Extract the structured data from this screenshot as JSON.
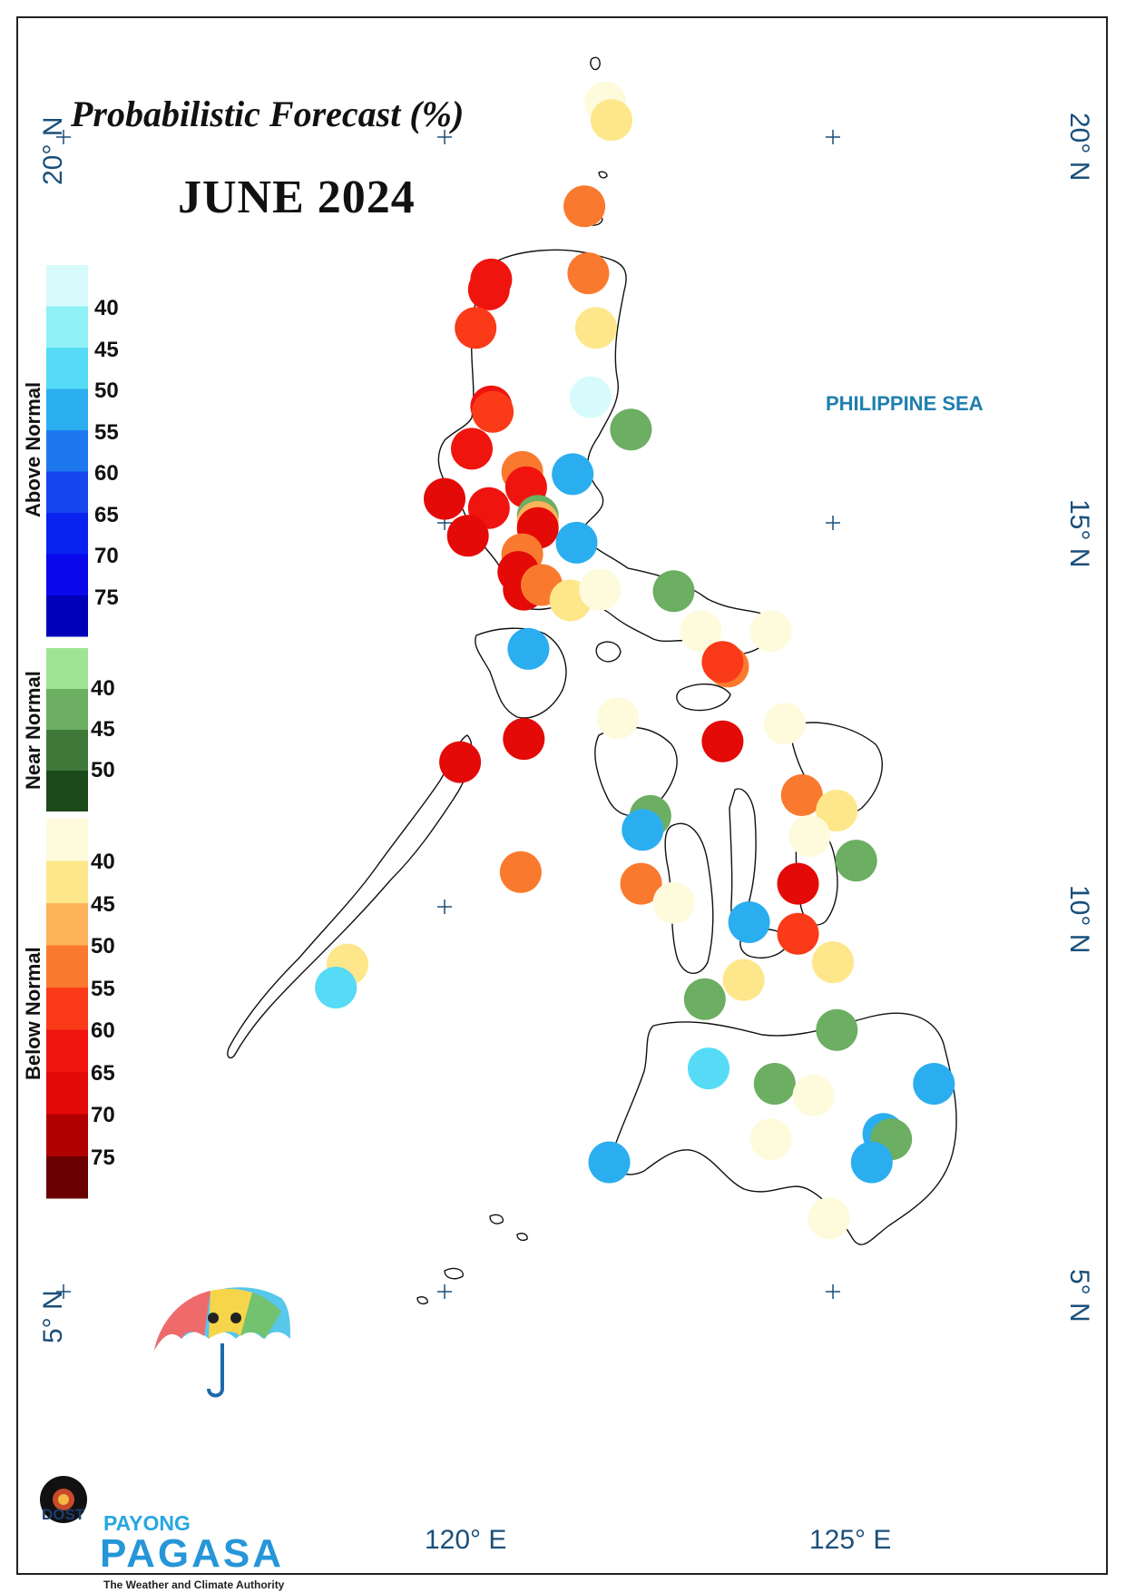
{
  "title": "Probabilistic Forecast (%)",
  "subtitle": "JUNE 2024",
  "sea_label": "PHILIPPINE SEA",
  "axes": {
    "lat_labels": [
      "20° N",
      "15° N",
      "10° N",
      "5° N"
    ],
    "lon_labels": [
      "120° E",
      "125° E"
    ],
    "lat_range": [
      4,
      21.5
    ],
    "lon_range": [
      114.3,
      127.3
    ]
  },
  "legend": {
    "above_normal": {
      "title": "Above Normal",
      "ticks": [
        "40",
        "45",
        "50",
        "55",
        "60",
        "65",
        "70",
        "75"
      ],
      "colors": [
        "#d7fbfc",
        "#8ff1f6",
        "#55dbf6",
        "#2aaef0",
        "#1d78ef",
        "#1447ee",
        "#0a22f0",
        "#0808ea",
        "#0000b8"
      ]
    },
    "near_normal": {
      "title": "Near Normal",
      "ticks": [
        "40",
        "45",
        "50"
      ],
      "colors": [
        "#9fe495",
        "#6cae62",
        "#40783a",
        "#1d4a1a"
      ]
    },
    "below_normal": {
      "title": "Below Normal",
      "ticks": [
        "40",
        "45",
        "50",
        "55",
        "60",
        "65",
        "70",
        "75"
      ],
      "colors": [
        "#fdfbdc",
        "#fde78a",
        "#fdb35a",
        "#f97a2e",
        "#fa3a18",
        "#f0140f",
        "#e30a08",
        "#b10000",
        "#6a0000"
      ]
    }
  },
  "chart_data": {
    "type": "scatter",
    "description_units": "longitude (°E), latitude (°N), category: above/near/below normal, probability level (%)",
    "points": [
      {
        "lon": 122.07,
        "lat": 20.45,
        "cat": "below",
        "level": 35
      },
      {
        "lon": 122.15,
        "lat": 20.22,
        "cat": "below",
        "level": 40
      },
      {
        "lon": 121.8,
        "lat": 19.1,
        "cat": "below",
        "level": 50
      },
      {
        "lon": 121.85,
        "lat": 18.23,
        "cat": "below",
        "level": 50
      },
      {
        "lon": 120.6,
        "lat": 18.15,
        "cat": "below",
        "level": 60
      },
      {
        "lon": 120.57,
        "lat": 18.02,
        "cat": "below",
        "level": 60
      },
      {
        "lon": 120.4,
        "lat": 17.52,
        "cat": "below",
        "level": 55
      },
      {
        "lon": 121.95,
        "lat": 17.52,
        "cat": "below",
        "level": 40
      },
      {
        "lon": 121.88,
        "lat": 16.62,
        "cat": "above",
        "level": 35
      },
      {
        "lon": 120.6,
        "lat": 16.5,
        "cat": "below",
        "level": 60
      },
      {
        "lon": 120.62,
        "lat": 16.43,
        "cat": "below",
        "level": 55
      },
      {
        "lon": 122.4,
        "lat": 16.2,
        "cat": "near",
        "level": 40
      },
      {
        "lon": 120.35,
        "lat": 15.95,
        "cat": "below",
        "level": 60
      },
      {
        "lon": 121.0,
        "lat": 15.65,
        "cat": "below",
        "level": 50
      },
      {
        "lon": 121.65,
        "lat": 15.62,
        "cat": "above",
        "level": 50
      },
      {
        "lon": 121.05,
        "lat": 15.45,
        "cat": "below",
        "level": 60
      },
      {
        "lon": 120.0,
        "lat": 15.3,
        "cat": "below",
        "level": 65
      },
      {
        "lon": 120.57,
        "lat": 15.18,
        "cat": "below",
        "level": 60
      },
      {
        "lon": 121.2,
        "lat": 15.08,
        "cat": "near",
        "level": 40
      },
      {
        "lon": 121.2,
        "lat": 15.0,
        "cat": "below",
        "level": 45
      },
      {
        "lon": 121.2,
        "lat": 14.92,
        "cat": "below",
        "level": 65
      },
      {
        "lon": 120.3,
        "lat": 14.82,
        "cat": "below",
        "level": 65
      },
      {
        "lon": 121.7,
        "lat": 14.73,
        "cat": "above",
        "level": 50
      },
      {
        "lon": 121.0,
        "lat": 14.58,
        "cat": "below",
        "level": 50
      },
      {
        "lon": 120.95,
        "lat": 14.35,
        "cat": "below",
        "level": 65
      },
      {
        "lon": 121.02,
        "lat": 14.12,
        "cat": "below",
        "level": 65
      },
      {
        "lon": 121.25,
        "lat": 14.18,
        "cat": "below",
        "level": 50
      },
      {
        "lon": 121.62,
        "lat": 13.98,
        "cat": "below",
        "level": 40
      },
      {
        "lon": 122.0,
        "lat": 14.12,
        "cat": "below",
        "level": 35
      },
      {
        "lon": 122.95,
        "lat": 14.1,
        "cat": "near",
        "level": 40
      },
      {
        "lon": 123.3,
        "lat": 13.58,
        "cat": "below",
        "level": 35
      },
      {
        "lon": 124.2,
        "lat": 13.58,
        "cat": "below",
        "level": 35
      },
      {
        "lon": 121.08,
        "lat": 13.35,
        "cat": "above",
        "level": 50
      },
      {
        "lon": 123.65,
        "lat": 13.12,
        "cat": "below",
        "level": 50
      },
      {
        "lon": 123.58,
        "lat": 13.18,
        "cat": "below",
        "level": 55
      },
      {
        "lon": 122.23,
        "lat": 12.45,
        "cat": "below",
        "level": 35
      },
      {
        "lon": 124.38,
        "lat": 12.38,
        "cat": "below",
        "level": 35
      },
      {
        "lon": 121.02,
        "lat": 12.18,
        "cat": "below",
        "level": 65
      },
      {
        "lon": 123.58,
        "lat": 12.15,
        "cat": "below",
        "level": 65
      },
      {
        "lon": 120.2,
        "lat": 11.88,
        "cat": "below",
        "level": 65
      },
      {
        "lon": 124.6,
        "lat": 11.45,
        "cat": "below",
        "level": 50
      },
      {
        "lon": 125.05,
        "lat": 11.25,
        "cat": "below",
        "level": 40
      },
      {
        "lon": 122.65,
        "lat": 11.18,
        "cat": "near",
        "level": 40
      },
      {
        "lon": 122.55,
        "lat": 11.0,
        "cat": "above",
        "level": 50
      },
      {
        "lon": 124.7,
        "lat": 10.92,
        "cat": "below",
        "level": 35
      },
      {
        "lon": 125.3,
        "lat": 10.6,
        "cat": "near",
        "level": 40
      },
      {
        "lon": 120.98,
        "lat": 10.45,
        "cat": "below",
        "level": 50
      },
      {
        "lon": 122.53,
        "lat": 10.3,
        "cat": "below",
        "level": 50
      },
      {
        "lon": 124.55,
        "lat": 10.3,
        "cat": "below",
        "level": 65
      },
      {
        "lon": 122.95,
        "lat": 10.05,
        "cat": "below",
        "level": 35
      },
      {
        "lon": 123.92,
        "lat": 9.8,
        "cat": "above",
        "level": 50
      },
      {
        "lon": 124.55,
        "lat": 9.65,
        "cat": "below",
        "level": 55
      },
      {
        "lon": 125.0,
        "lat": 9.28,
        "cat": "below",
        "level": 40
      },
      {
        "lon": 118.75,
        "lat": 9.25,
        "cat": "below",
        "level": 40
      },
      {
        "lon": 123.85,
        "lat": 9.05,
        "cat": "below",
        "level": 40
      },
      {
        "lon": 118.6,
        "lat": 8.95,
        "cat": "above",
        "level": 45
      },
      {
        "lon": 123.35,
        "lat": 8.8,
        "cat": "near",
        "level": 40
      },
      {
        "lon": 125.05,
        "lat": 8.4,
        "cat": "near",
        "level": 40
      },
      {
        "lon": 123.4,
        "lat": 7.9,
        "cat": "above",
        "level": 45
      },
      {
        "lon": 124.25,
        "lat": 7.7,
        "cat": "near",
        "level": 40
      },
      {
        "lon": 126.3,
        "lat": 7.7,
        "cat": "above",
        "level": 50
      },
      {
        "lon": 124.75,
        "lat": 7.55,
        "cat": "below",
        "level": 35
      },
      {
        "lon": 124.2,
        "lat": 6.98,
        "cat": "below",
        "level": 35
      },
      {
        "lon": 125.65,
        "lat": 7.05,
        "cat": "above",
        "level": 50
      },
      {
        "lon": 125.75,
        "lat": 6.98,
        "cat": "near",
        "level": 40
      },
      {
        "lon": 125.5,
        "lat": 6.68,
        "cat": "above",
        "level": 50
      },
      {
        "lon": 122.12,
        "lat": 6.68,
        "cat": "above",
        "level": 50
      },
      {
        "lon": 124.95,
        "lat": 5.95,
        "cat": "below",
        "level": 35
      }
    ]
  },
  "logo": {
    "dost": "DOST",
    "payong": "PAYONG",
    "pagasa": "PAGASA",
    "tagline": "The Weather and Climate Authority"
  }
}
